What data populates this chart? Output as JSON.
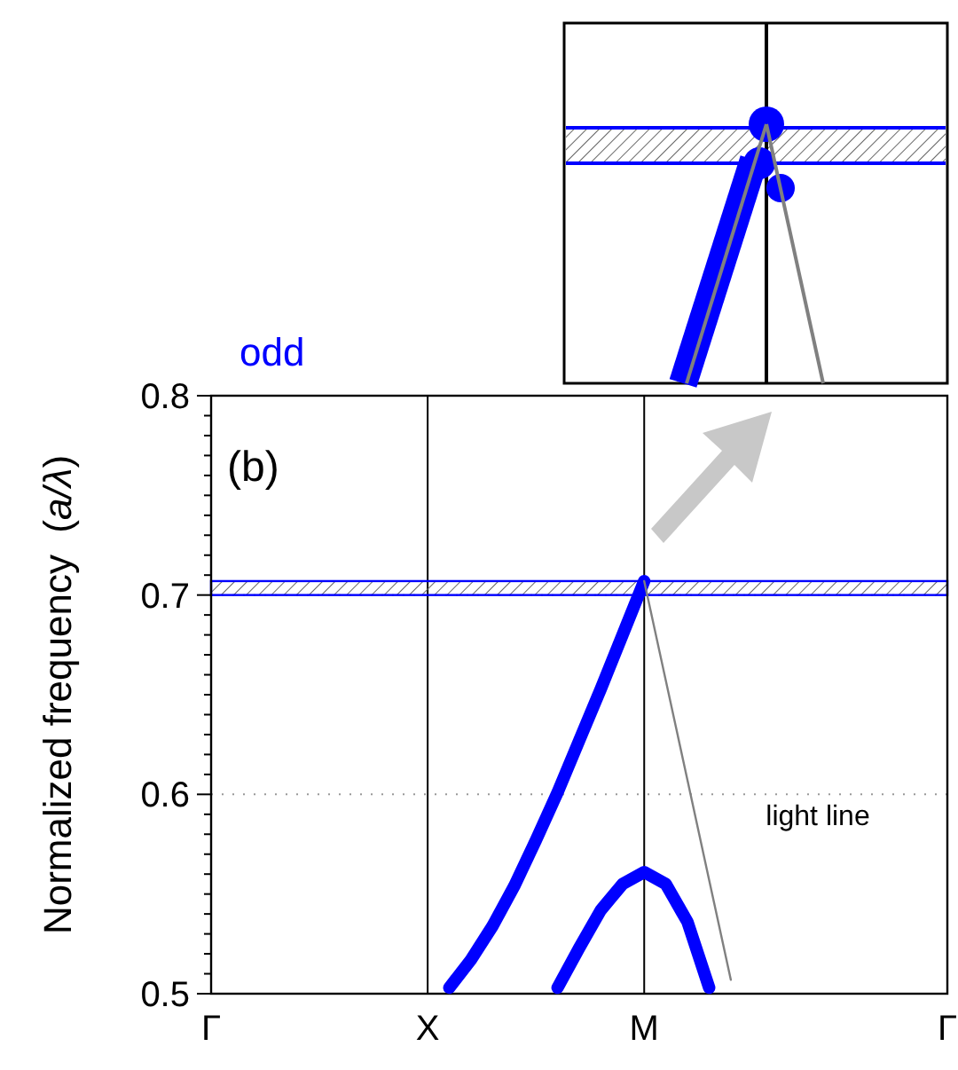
{
  "chart_data": {
    "type": "line",
    "title": "odd",
    "ylabel": "Normalized frequency  (a/λ)",
    "annotations": [
      "(b)",
      "light line"
    ],
    "categories": [
      "Γ",
      null,
      null,
      null,
      null,
      null,
      null,
      null,
      null,
      null,
      "X",
      null,
      null,
      null,
      null,
      null,
      null,
      null,
      null,
      null,
      "M",
      null,
      null,
      null,
      null,
      null,
      null,
      null,
      null,
      null,
      null,
      null,
      null,
      null,
      "Γ"
    ],
    "ylim": [
      0.5,
      0.8
    ],
    "yticks": [
      0.5,
      {
        "value": 0.51,
        "label": null
      },
      {
        "value": 0.52,
        "label": null
      },
      {
        "value": 0.53,
        "label": null
      },
      {
        "value": 0.54,
        "label": null
      },
      {
        "value": 0.55,
        "label": null
      },
      {
        "value": 0.56,
        "label": null
      },
      {
        "value": 0.57,
        "label": null
      },
      {
        "value": 0.58,
        "label": null
      },
      {
        "value": 0.59,
        "label": null
      },
      0.6,
      {
        "value": 0.61,
        "label": null
      },
      {
        "value": 0.62,
        "label": null
      },
      {
        "value": 0.63,
        "label": null
      },
      {
        "value": 0.64,
        "label": null
      },
      {
        "value": 0.65,
        "label": null
      },
      {
        "value": 0.66,
        "label": null
      },
      {
        "value": 0.67,
        "label": null
      },
      {
        "value": 0.68,
        "label": null
      },
      {
        "value": 0.69,
        "label": null
      },
      0.7,
      {
        "value": 0.71,
        "label": null
      },
      {
        "value": 0.72,
        "label": null
      },
      {
        "value": 0.73,
        "label": null
      },
      {
        "value": 0.74,
        "label": null
      },
      {
        "value": 0.75,
        "label": null
      },
      {
        "value": 0.76,
        "label": null
      },
      {
        "value": 0.77,
        "label": null
      },
      {
        "value": 0.78,
        "label": null
      },
      {
        "value": 0.79,
        "label": null
      },
      0.8
    ],
    "grid": true,
    "bands": [
      {
        "axis": "y",
        "from": 0.7,
        "to": 0.707,
        "color": "#0000ff"
      }
    ],
    "series": [
      {
        "color": "#0000ff",
        "values": [
          null,
          null,
          null,
          null,
          null,
          null,
          null,
          null,
          null,
          null,
          null,
          0.503,
          0.517,
          0.534,
          0.554,
          0.577,
          0.601,
          0.627,
          0.653,
          0.68,
          0.707,
          null,
          null,
          null,
          null,
          null,
          null,
          null,
          null,
          null,
          null,
          null,
          null,
          null,
          null
        ]
      },
      {
        "color": "#0000ff",
        "values": [
          null,
          null,
          null,
          null,
          null,
          null,
          null,
          null,
          null,
          null,
          null,
          null,
          null,
          null,
          null,
          null,
          0.503,
          0.523,
          0.542,
          0.555,
          0.561,
          0.555,
          0.536,
          0.503,
          null,
          null,
          null,
          null,
          null,
          null,
          null,
          null,
          null,
          null,
          null
        ]
      },
      {
        "color": "#808080",
        "values": [
          null,
          null,
          null,
          null,
          null,
          null,
          null,
          null,
          null,
          null,
          null,
          null,
          null,
          null,
          null,
          null,
          null,
          null,
          null,
          null,
          0.707,
          0.657,
          0.607,
          0.557,
          0.507,
          null,
          null,
          null,
          null,
          null,
          null,
          null,
          null,
          null,
          null
        ]
      }
    ]
  }
}
